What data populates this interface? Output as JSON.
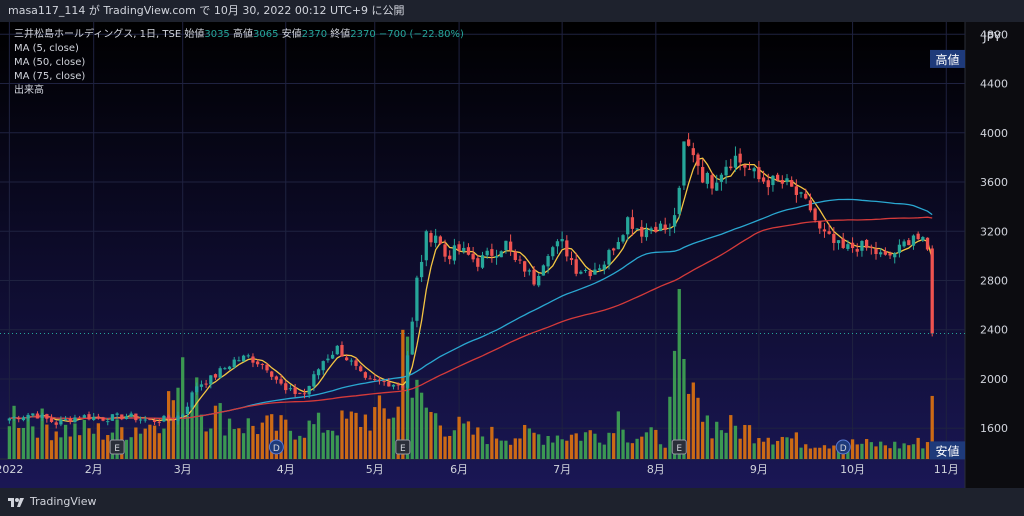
{
  "header": {
    "attribution": "masa117_114 が TradingView.com で 10月 30, 2022 00:12 UTC+9 に公開"
  },
  "legend": {
    "symbol": "三井松島ホールディングス, 1日, TSE",
    "open_label": "始値",
    "open": "3035",
    "high_label": "高値",
    "high": "3065",
    "low_label": "安値",
    "low": "2370",
    "close_label": "終値",
    "close": "2370",
    "change": "−700 (−22.80%)",
    "ma5": "MA (5, close)",
    "ma50": "MA (50, close)",
    "ma75": "MA (75, close)",
    "volume": "出来高"
  },
  "footer": {
    "brand": "TradingView"
  },
  "colors": {
    "background_top": "#000000",
    "background_bottom": "#1a1755",
    "up": "#26a69a",
    "down": "#ef5350",
    "ma5": "#f4c542",
    "ma50": "#2aa7d0",
    "ma75": "#d43a3a",
    "vol_up": "#3fa653",
    "vol_down": "#e07310",
    "marker": "#1e3a7a"
  },
  "chart_data": {
    "type": "candlestick",
    "currency": "JPY",
    "y_ticks": [
      "1600",
      "2000",
      "2400",
      "2800",
      "3200",
      "3600",
      "4000",
      "4400",
      "4800"
    ],
    "ylim": [
      1350,
      4900
    ],
    "x_ticks": [
      {
        "label": "2022",
        "day": 0
      },
      {
        "label": "2月",
        "day": 18
      },
      {
        "label": "3月",
        "day": 37
      },
      {
        "label": "4月",
        "day": 59
      },
      {
        "label": "5月",
        "day": 78
      },
      {
        "label": "6月",
        "day": 96
      },
      {
        "label": "7月",
        "day": 118
      },
      {
        "label": "8月",
        "day": 138
      },
      {
        "label": "9月",
        "day": 160
      },
      {
        "label": "10月",
        "day": 180
      },
      {
        "label": "11月",
        "day": 200
      }
    ],
    "x_range": [
      -2,
      204
    ],
    "price_tags": [
      {
        "label": "高値",
        "price": 4600
      },
      {
        "label": "安値",
        "price": 1420
      }
    ],
    "last_price": 2370,
    "event_markers": [
      {
        "type": "E",
        "day": 23
      },
      {
        "type": "D",
        "day": 57
      },
      {
        "type": "E",
        "day": 84
      },
      {
        "type": "E",
        "day": 143
      },
      {
        "type": "D",
        "day": 178
      }
    ],
    "keypoints": [
      [
        0,
        1680
      ],
      [
        5,
        1720
      ],
      [
        10,
        1640
      ],
      [
        15,
        1700
      ],
      [
        20,
        1680
      ],
      [
        25,
        1700
      ],
      [
        30,
        1660
      ],
      [
        35,
        1680
      ],
      [
        37,
        1720
      ],
      [
        40,
        1950
      ],
      [
        43,
        2000
      ],
      [
        48,
        2150
      ],
      [
        51,
        2180
      ],
      [
        55,
        2100
      ],
      [
        59,
        1900
      ],
      [
        63,
        1880
      ],
      [
        67,
        2150
      ],
      [
        70,
        2250
      ],
      [
        73,
        2130
      ],
      [
        76,
        1980
      ],
      [
        80,
        1980
      ],
      [
        84,
        1950
      ],
      [
        86,
        2450
      ],
      [
        87,
        2800
      ],
      [
        89,
        3150
      ],
      [
        91,
        3180
      ],
      [
        93,
        3000
      ],
      [
        96,
        3050
      ],
      [
        100,
        2950
      ],
      [
        104,
        3050
      ],
      [
        106,
        3100
      ],
      [
        108,
        2950
      ],
      [
        110,
        2900
      ],
      [
        112,
        2800
      ],
      [
        115,
        3050
      ],
      [
        118,
        3100
      ],
      [
        121,
        2900
      ],
      [
        124,
        2880
      ],
      [
        127,
        2950
      ],
      [
        130,
        3150
      ],
      [
        132,
        3300
      ],
      [
        135,
        3200
      ],
      [
        138,
        3250
      ],
      [
        141,
        3200
      ],
      [
        143,
        3500
      ],
      [
        144,
        3900
      ],
      [
        146,
        3850
      ],
      [
        148,
        3650
      ],
      [
        150,
        3600
      ],
      [
        153,
        3750
      ],
      [
        155,
        3800
      ],
      [
        158,
        3700
      ],
      [
        160,
        3620
      ],
      [
        163,
        3600
      ],
      [
        166,
        3580
      ],
      [
        168,
        3500
      ],
      [
        171,
        3380
      ],
      [
        173,
        3200
      ],
      [
        176,
        3100
      ],
      [
        178,
        3050
      ],
      [
        181,
        3080
      ],
      [
        184,
        3050
      ],
      [
        187,
        2980
      ],
      [
        190,
        3050
      ],
      [
        193,
        3180
      ],
      [
        195,
        3100
      ],
      [
        196,
        3035
      ],
      [
        197,
        2370
      ]
    ],
    "volume_keypoints": [
      [
        0,
        0.14
      ],
      [
        10,
        0.09
      ],
      [
        20,
        0.08
      ],
      [
        30,
        0.1
      ],
      [
        35,
        0.18
      ],
      [
        37,
        0.22
      ],
      [
        40,
        0.15
      ],
      [
        50,
        0.1
      ],
      [
        60,
        0.09
      ],
      [
        70,
        0.1
      ],
      [
        84,
        0.15
      ],
      [
        86,
        0.2
      ],
      [
        88,
        0.16
      ],
      [
        92,
        0.11
      ],
      [
        100,
        0.07
      ],
      [
        120,
        0.07
      ],
      [
        130,
        0.08
      ],
      [
        140,
        0.06
      ],
      [
        143,
        0.3
      ],
      [
        145,
        0.18
      ],
      [
        150,
        0.1
      ],
      [
        160,
        0.08
      ],
      [
        170,
        0.05
      ],
      [
        190,
        0.04
      ],
      [
        196,
        0.05
      ],
      [
        197,
        0.2
      ]
    ],
    "volume_spikes": [
      {
        "day": 84,
        "frac": 0.38
      },
      {
        "day": 85,
        "frac": 0.36
      },
      {
        "day": 143,
        "frac": 0.5
      },
      {
        "day": 147,
        "frac": 0.18
      },
      {
        "day": 130,
        "frac": 0.14
      },
      {
        "day": 40,
        "frac": 0.24
      }
    ]
  }
}
